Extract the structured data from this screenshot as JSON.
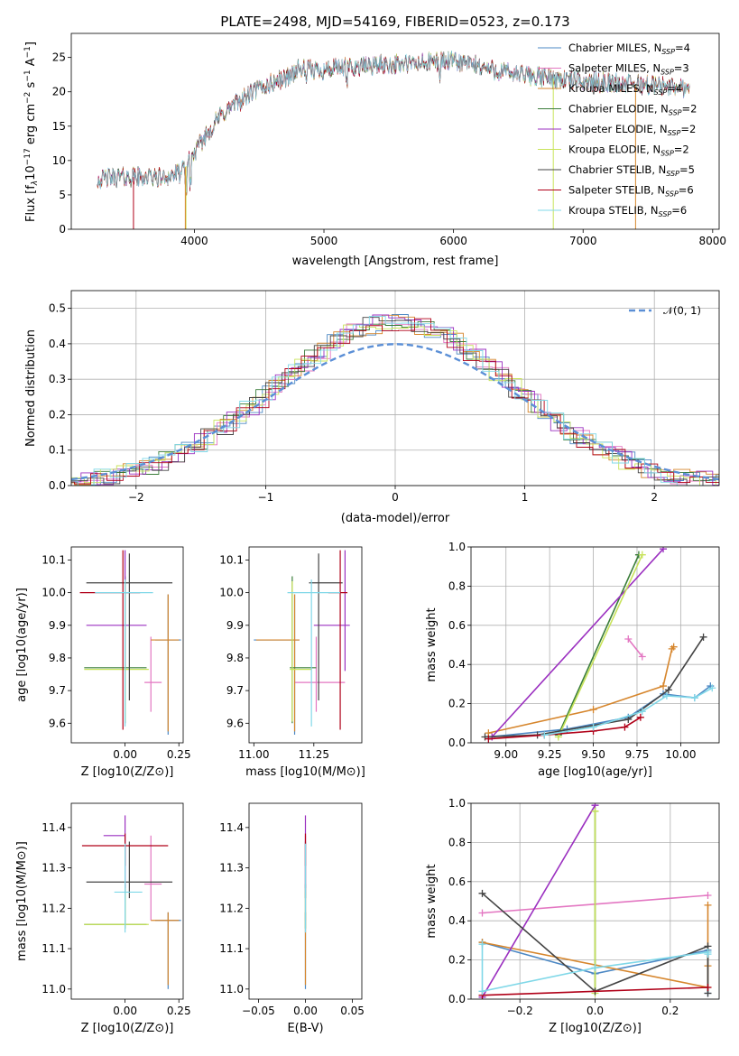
{
  "colors": {
    "Chabrier MILES": "#4c88c4",
    "Salpeter MILES": "#e377c2",
    "Kroupa MILES": "#d6862d",
    "Chabrier ELODIE": "#3a7d3a",
    "Salpeter ELODIE": "#9b30c0",
    "Kroupa ELODIE": "#c8e35a",
    "Chabrier STELIB": "#444444",
    "Salpeter STELIB": "#b00018",
    "Kroupa STELIB": "#80d8e8",
    "normal": "#5b8fd6"
  },
  "chart_data": [
    {
      "type": "line",
      "title": "PLATE=2498, MJD=54169, FIBERID=0523, z=0.173",
      "xlabel": "wavelength [Angstrom, rest frame]",
      "ylabel_parts": [
        "Flux [f",
        "λ",
        "10",
        "−17",
        " erg cm",
        "−2",
        " s",
        "−1",
        " A",
        "−1",
        "]"
      ],
      "xlim": [
        3050,
        8050
      ],
      "ylim": [
        0,
        28.5
      ],
      "xticks": [
        4000,
        5000,
        6000,
        7000,
        8000
      ],
      "yticks": [
        0,
        5,
        10,
        15,
        20,
        25
      ],
      "legend_position": "top-right",
      "continuum": [
        [
          3250,
          7.3
        ],
        [
          3400,
          7.6
        ],
        [
          3600,
          7.6
        ],
        [
          3750,
          7.5
        ],
        [
          3900,
          8.2
        ],
        [
          4000,
          11
        ],
        [
          4100,
          14
        ],
        [
          4200,
          16.5
        ],
        [
          4300,
          18
        ],
        [
          4500,
          20.5
        ],
        [
          4700,
          22
        ],
        [
          4800,
          23.2
        ],
        [
          5000,
          23.2
        ],
        [
          5200,
          23.6
        ],
        [
          5500,
          24
        ],
        [
          5700,
          24
        ],
        [
          5900,
          24.5
        ],
        [
          6100,
          24.2
        ],
        [
          6300,
          23.2
        ],
        [
          6500,
          22.5
        ],
        [
          7000,
          21.5
        ],
        [
          7500,
          21
        ],
        [
          7800,
          20.6
        ]
      ],
      "series": [
        {
          "name": "Chabrier MILES",
          "nssp": "4"
        },
        {
          "name": "Salpeter MILES",
          "nssp": "3"
        },
        {
          "name": "Kroupa MILES",
          "nssp": "4"
        },
        {
          "name": "Chabrier ELODIE",
          "nssp": "2"
        },
        {
          "name": "Salpeter ELODIE",
          "nssp": "2"
        },
        {
          "name": "Kroupa ELODIE",
          "nssp": "2"
        },
        {
          "name": "Chabrier STELIB",
          "nssp": "5"
        },
        {
          "name": "Salpeter STELIB",
          "nssp": "6"
        },
        {
          "name": "Kroupa STELIB",
          "nssp": "6"
        }
      ]
    },
    {
      "type": "histogram",
      "xlabel": "(data-model)/error",
      "ylabel": "Normed distribution",
      "xlim": [
        -2.5,
        2.5
      ],
      "ylim": [
        0,
        0.55
      ],
      "xticks": [
        -2,
        -1,
        0,
        1,
        2
      ],
      "yticks": [
        0,
        0.1,
        0.2,
        0.3,
        0.4,
        0.5
      ],
      "bin_width": 0.125,
      "overlay": {
        "name": "𝒩(0, 1)",
        "mean": 0,
        "sigma": 1
      },
      "legend_position": "top-right",
      "grid": true
    },
    {
      "type": "errorbar",
      "xlabel": "Z [log10(Z/Z⊙)]",
      "ylabel": "age  [log10(age/yr)]",
      "xlim": [
        -0.25,
        0.27
      ],
      "ylim": [
        9.54,
        10.14
      ],
      "xticks": [
        0.0,
        0.25
      ],
      "yticks": [
        9.6,
        9.7,
        9.8,
        9.9,
        10.0,
        10.1
      ],
      "points": [
        {
          "series": "Chabrier MILES",
          "x": 0.2,
          "xerr": [
            0.06,
            0.06
          ],
          "y": 9.855,
          "yerr": [
            0.29,
            0.14
          ]
        },
        {
          "series": "Salpeter MILES",
          "x": 0.12,
          "xerr": [
            0.03,
            0.05
          ],
          "y": 9.725,
          "yerr": [
            0.09,
            0.14
          ]
        },
        {
          "series": "Kroupa MILES",
          "x": 0.2,
          "xerr": [
            0.08,
            0.05
          ],
          "y": 9.855,
          "yerr": [
            0.28,
            0.14
          ]
        },
        {
          "series": "Chabrier ELODIE",
          "x": 0.0,
          "xerr": [
            0.19,
            0.1
          ],
          "y": 9.77,
          "yerr": [
            0.17,
            0.28
          ]
        },
        {
          "series": "Salpeter ELODIE",
          "x": 0.0,
          "xerr": [
            0.18,
            0.1
          ],
          "y": 9.9,
          "yerr": [
            0.14,
            0.23
          ]
        },
        {
          "series": "Kroupa ELODIE",
          "x": 0.0,
          "xerr": [
            0.19,
            0.11
          ],
          "y": 9.765,
          "yerr": [
            0.16,
            0.27
          ]
        },
        {
          "series": "Chabrier STELIB",
          "x": 0.02,
          "xerr": [
            0.2,
            0.2
          ],
          "y": 10.03,
          "yerr": [
            0.36,
            0.09
          ]
        },
        {
          "series": "Salpeter STELIB",
          "x": -0.01,
          "xerr": [
            0.2,
            0.08
          ],
          "y": 10.0,
          "yerr": [
            0.42,
            0.13
          ]
        },
        {
          "series": "Kroupa STELIB",
          "x": 0.0,
          "xerr": [
            0.14,
            0.13
          ],
          "y": 10.0,
          "yerr": [
            0.41,
            0.04
          ]
        }
      ]
    },
    {
      "type": "errorbar",
      "xlabel": "mass [log10(M/M⊙)]",
      "xlim": [
        10.98,
        11.45
      ],
      "ylim": [
        9.54,
        10.14
      ],
      "xticks": [
        11.0,
        11.25
      ],
      "yticks": [
        9.6,
        9.7,
        9.8,
        9.9,
        10.0,
        10.1
      ],
      "points": [
        {
          "series": "Chabrier MILES",
          "x": 11.17,
          "xerr": [
            0.17,
            0.02
          ],
          "y": 9.855,
          "yerr": [
            0.29,
            0.14
          ]
        },
        {
          "series": "Salpeter MILES",
          "x": 11.26,
          "xerr": [
            0.09,
            0.12
          ],
          "y": 9.725,
          "yerr": [
            0.09,
            0.14
          ]
        },
        {
          "series": "Kroupa MILES",
          "x": 11.17,
          "xerr": [
            0.16,
            0.02
          ],
          "y": 9.855,
          "yerr": [
            0.28,
            0.14
          ]
        },
        {
          "series": "Chabrier ELODIE",
          "x": 11.16,
          "xerr": [
            0.01,
            0.1
          ],
          "y": 9.77,
          "yerr": [
            0.17,
            0.28
          ]
        },
        {
          "series": "Salpeter ELODIE",
          "x": 11.38,
          "xerr": [
            0.13,
            0.02
          ],
          "y": 9.9,
          "yerr": [
            0.14,
            0.23
          ]
        },
        {
          "series": "Kroupa ELODIE",
          "x": 11.16,
          "xerr": [
            0.01,
            0.08
          ],
          "y": 9.765,
          "yerr": [
            0.16,
            0.27
          ]
        },
        {
          "series": "Chabrier STELIB",
          "x": 11.27,
          "xerr": [
            0.04,
            0.1
          ],
          "y": 10.03,
          "yerr": [
            0.36,
            0.09
          ]
        },
        {
          "series": "Salpeter STELIB",
          "x": 11.36,
          "xerr": [
            0.05,
            0.03
          ],
          "y": 10.0,
          "yerr": [
            0.42,
            0.13
          ]
        },
        {
          "series": "Kroupa STELIB",
          "x": 11.24,
          "xerr": [
            0.1,
            0.12
          ],
          "y": 10.0,
          "yerr": [
            0.41,
            0.04
          ]
        }
      ]
    },
    {
      "type": "line",
      "xlabel": "age  [log10(age/yr)]",
      "ylabel": "mass weight",
      "xlim": [
        8.8,
        10.22
      ],
      "ylim": [
        0,
        1.0
      ],
      "xticks": [
        9.0,
        9.25,
        9.5,
        9.75,
        10.0
      ],
      "yticks": [
        0.0,
        0.2,
        0.4,
        0.6,
        0.8,
        1.0
      ],
      "grid": true,
      "series": [
        {
          "name": "Chabrier MILES",
          "x": [
            8.9,
            9.35,
            9.7,
            9.9,
            10.08,
            10.17
          ],
          "y": [
            0.03,
            0.07,
            0.13,
            0.25,
            0.23,
            0.29
          ]
        },
        {
          "name": "Salpeter MILES",
          "x": [
            9.7,
            9.78
          ],
          "y": [
            0.53,
            0.44
          ]
        },
        {
          "name": "Kroupa MILES",
          "x": [
            8.9,
            9.5,
            9.9,
            9.95,
            9.96
          ],
          "y": [
            0.05,
            0.17,
            0.29,
            0.48,
            0.49
          ]
        },
        {
          "name": "Chabrier ELODIE",
          "x": [
            9.3,
            9.76
          ],
          "y": [
            0.04,
            0.96
          ]
        },
        {
          "name": "Salpeter ELODIE",
          "x": [
            8.92,
            9.9
          ],
          "y": [
            0.03,
            0.99
          ]
        },
        {
          "name": "Kroupa ELODIE",
          "x": [
            9.3,
            9.78
          ],
          "y": [
            0.03,
            0.96
          ]
        },
        {
          "name": "Chabrier STELIB",
          "x": [
            8.88,
            9.18,
            9.7,
            9.93,
            10.13
          ],
          "y": [
            0.03,
            0.04,
            0.12,
            0.27,
            0.54
          ]
        },
        {
          "name": "Salpeter STELIB",
          "x": [
            8.9,
            9.22,
            9.5,
            9.68,
            9.77
          ],
          "y": [
            0.02,
            0.04,
            0.06,
            0.08,
            0.13
          ]
        },
        {
          "name": "Kroupa STELIB",
          "x": [
            9.22,
            9.5,
            9.78,
            9.92,
            10.08,
            10.18
          ],
          "y": [
            0.04,
            0.08,
            0.16,
            0.24,
            0.23,
            0.28
          ]
        }
      ]
    },
    {
      "type": "errorbar",
      "xlabel": "Z [log10(Z/Z⊙)]",
      "ylabel": "mass [log10(M/M⊙)]",
      "xlim": [
        -0.25,
        0.27
      ],
      "ylim": [
        10.975,
        11.46
      ],
      "xticks": [
        0.0,
        0.25
      ],
      "yticks": [
        11.0,
        11.1,
        11.2,
        11.3,
        11.4
      ],
      "points": [
        {
          "series": "Chabrier MILES",
          "x": 0.2,
          "xerr": [
            0.06,
            0.06
          ],
          "y": 11.17,
          "yerr": [
            0.17,
            0.02
          ]
        },
        {
          "series": "Salpeter MILES",
          "x": 0.12,
          "xerr": [
            0.03,
            0.05
          ],
          "y": 11.26,
          "yerr": [
            0.09,
            0.12
          ]
        },
        {
          "series": "Kroupa MILES",
          "x": 0.2,
          "xerr": [
            0.08,
            0.05
          ],
          "y": 11.17,
          "yerr": [
            0.16,
            0.02
          ]
        },
        {
          "series": "Chabrier ELODIE",
          "x": 0.0,
          "xerr": [
            0.19,
            0.1
          ],
          "y": 11.16,
          "yerr": [
            0.01,
            0.1
          ]
        },
        {
          "series": "Salpeter ELODIE",
          "x": 0.0,
          "xerr": [
            0.1,
            0.0
          ],
          "y": 11.38,
          "yerr": [
            0.13,
            0.05
          ]
        },
        {
          "series": "Kroupa ELODIE",
          "x": 0.0,
          "xerr": [
            0.19,
            0.11
          ],
          "y": 11.16,
          "yerr": [
            0.01,
            0.08
          ]
        },
        {
          "series": "Chabrier STELIB",
          "x": 0.02,
          "xerr": [
            0.2,
            0.2
          ],
          "y": 11.265,
          "yerr": [
            0.04,
            0.1
          ]
        },
        {
          "series": "Salpeter STELIB",
          "x": 0.0,
          "xerr": [
            0.2,
            0.2
          ],
          "y": 11.355,
          "yerr": [
            0.05,
            0.03
          ]
        },
        {
          "series": "Kroupa STELIB",
          "x": 0.0,
          "xerr": [
            0.05,
            0.08
          ],
          "y": 11.24,
          "yerr": [
            0.1,
            0.12
          ]
        }
      ]
    },
    {
      "type": "errorbar",
      "xlabel": "E(B-V)",
      "xlim": [
        -0.06,
        0.06
      ],
      "ylim": [
        10.975,
        11.46
      ],
      "xticks": [
        -0.05,
        0.0,
        0.05
      ],
      "yticks": [
        11.0,
        11.1,
        11.2,
        11.3,
        11.4
      ],
      "points": [
        {
          "series": "Chabrier MILES",
          "x": 0.0,
          "xerr": [
            0,
            0
          ],
          "y": 11.17,
          "yerr": [
            0.17,
            0.02
          ]
        },
        {
          "series": "Salpeter MILES",
          "x": 0.0,
          "xerr": [
            0,
            0
          ],
          "y": 11.26,
          "yerr": [
            0.09,
            0.12
          ]
        },
        {
          "series": "Kroupa MILES",
          "x": 0.0,
          "xerr": [
            0,
            0
          ],
          "y": 11.17,
          "yerr": [
            0.16,
            0.02
          ]
        },
        {
          "series": "Chabrier ELODIE",
          "x": 0.0,
          "xerr": [
            0,
            0
          ],
          "y": 11.16,
          "yerr": [
            0.01,
            0.1
          ]
        },
        {
          "series": "Salpeter ELODIE",
          "x": 0.0,
          "xerr": [
            0,
            0
          ],
          "y": 11.38,
          "yerr": [
            0.13,
            0.05
          ]
        },
        {
          "series": "Kroupa ELODIE",
          "x": 0.0,
          "xerr": [
            0,
            0
          ],
          "y": 11.16,
          "yerr": [
            0.01,
            0.08
          ]
        },
        {
          "series": "Chabrier STELIB",
          "x": 0.0,
          "xerr": [
            0,
            0
          ],
          "y": 11.265,
          "yerr": [
            0.04,
            0.1
          ]
        },
        {
          "series": "Salpeter STELIB",
          "x": 0.0,
          "xerr": [
            0,
            0
          ],
          "y": 11.355,
          "yerr": [
            0.05,
            0.03
          ]
        },
        {
          "series": "Kroupa STELIB",
          "x": 0.0,
          "xerr": [
            0,
            0
          ],
          "y": 11.24,
          "yerr": [
            0.1,
            0.12
          ]
        }
      ]
    },
    {
      "type": "line",
      "xlabel": "Z [log10(Z/Z⊙)]",
      "ylabel": "mass weight",
      "xlim": [
        -0.33,
        0.33
      ],
      "ylim": [
        0,
        1.0
      ],
      "xticks": [
        -0.2,
        0.0,
        0.2
      ],
      "yticks": [
        0.0,
        0.2,
        0.4,
        0.6,
        0.8,
        1.0
      ],
      "grid": true,
      "series": [
        {
          "name": "Chabrier MILES",
          "x": [
            -0.3,
            0.0,
            0.3,
            0.3
          ],
          "y": [
            0.29,
            0.13,
            0.25,
            0.03
          ]
        },
        {
          "name": "Salpeter MILES",
          "x": [
            -0.3,
            0.3
          ],
          "y": [
            0.44,
            0.53
          ]
        },
        {
          "name": "Kroupa MILES",
          "x": [
            -0.3,
            0.3,
            0.3,
            0.3
          ],
          "y": [
            0.29,
            0.06,
            0.48,
            0.17
          ]
        },
        {
          "name": "Chabrier ELODIE",
          "x": [
            0.0,
            0.0
          ],
          "y": [
            0.04,
            0.96
          ]
        },
        {
          "name": "Salpeter ELODIE",
          "x": [
            -0.3,
            0.0
          ],
          "y": [
            0.01,
            0.99
          ]
        },
        {
          "name": "Kroupa ELODIE",
          "x": [
            0.0,
            0.0
          ],
          "y": [
            0.03,
            0.96
          ]
        },
        {
          "name": "Chabrier STELIB",
          "x": [
            -0.3,
            0.0,
            0.3,
            0.3
          ],
          "y": [
            0.54,
            0.04,
            0.27,
            0.03
          ]
        },
        {
          "name": "Salpeter STELIB",
          "x": [
            -0.3,
            0.3
          ],
          "y": [
            0.02,
            0.06
          ]
        },
        {
          "name": "Kroupa STELIB",
          "x": [
            -0.3,
            -0.3,
            0.0,
            0.3,
            0.3
          ],
          "y": [
            0.28,
            0.04,
            0.16,
            0.24,
            0.23
          ]
        }
      ]
    }
  ]
}
